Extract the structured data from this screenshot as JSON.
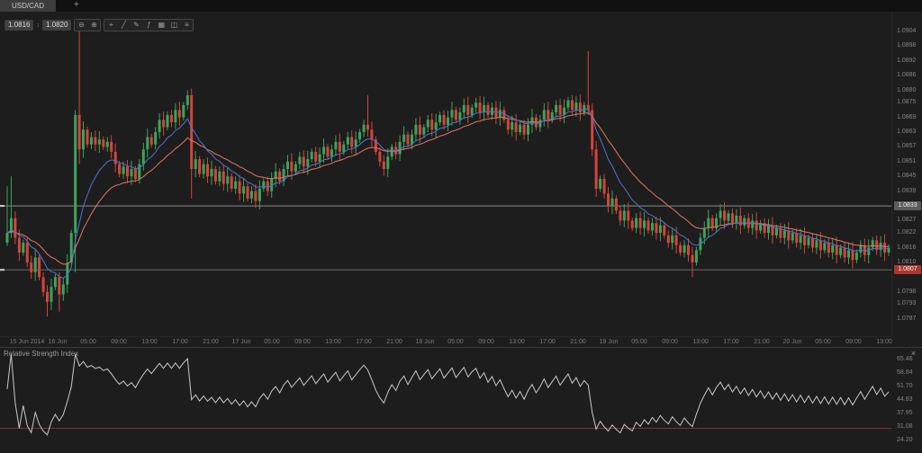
{
  "window": {
    "tabs": [
      {
        "label": "USD/CAD"
      }
    ],
    "add_tab_label": "+"
  },
  "toolbar": {
    "bid": "1.0816",
    "ask": "1.0820",
    "spread_icon_glyph": "↕",
    "icons": [
      {
        "name": "zoom-out-icon",
        "glyph": "⊖"
      },
      {
        "name": "zoom-in-icon",
        "glyph": "⊕"
      },
      {
        "name": "crosshair-icon",
        "glyph": "⌖"
      },
      {
        "name": "trendline-icon",
        "glyph": "╱"
      },
      {
        "name": "draw-icon",
        "glyph": "✎"
      },
      {
        "name": "indicators-icon",
        "glyph": "ƒ"
      },
      {
        "name": "grid-icon",
        "glyph": "▦"
      },
      {
        "name": "layout-icon",
        "glyph": "◫"
      },
      {
        "name": "menu-icon",
        "glyph": "≡"
      }
    ]
  },
  "price_axis": {
    "ticks": [
      "1.0904",
      "1.0898",
      "1.0892",
      "1.0886",
      "1.0880",
      "1.0875",
      "1.0869",
      "1.0863",
      "1.0857",
      "1.0851",
      "1.0845",
      "1.0839",
      "1.0827",
      "1.0822",
      "1.0816",
      "1.0810",
      "1.0798",
      "1.0793",
      "1.0787"
    ],
    "badges": [
      {
        "label": "1.0833",
        "value": 1.0833,
        "type": "gray"
      },
      {
        "label": "1.0807",
        "value": 1.0807,
        "type": "red"
      }
    ]
  },
  "time_axis": {
    "labels": [
      "15 Jun 2014",
      "16 Jun",
      "05:00",
      "09:00",
      "13:00",
      "17:00",
      "21:00",
      "17 Jun",
      "05:00",
      "09:00",
      "13:00",
      "17:00",
      "21:00",
      "18 Jun",
      "05:00",
      "09:00",
      "13:00",
      "17:00",
      "21:00",
      "19 Jun",
      "05:00",
      "09:00",
      "13:00",
      "17:00",
      "21:00",
      "20 Jun",
      "05:00",
      "09:00",
      "13:00"
    ]
  },
  "rsi_panel": {
    "title": "Relative Strength Index",
    "close_label": "×",
    "ticks": [
      "65.46",
      "58.84",
      "51.70",
      "44.83",
      "37.95",
      "31.08",
      "24.20"
    ]
  },
  "chart_data": {
    "type": "candlestick",
    "symbol": "USD/CAD",
    "price_min": 1.078,
    "price_max": 1.0912,
    "first_open": 1.0818,
    "closes": [
      1.0822,
      1.0828,
      1.082,
      1.0814,
      1.0818,
      1.081,
      1.0806,
      1.0812,
      1.0804,
      1.0798,
      1.0794,
      1.08,
      1.0804,
      1.0797,
      1.0801,
      1.081,
      1.0822,
      1.087,
      1.0856,
      1.0864,
      1.0858,
      1.0861,
      1.0858,
      1.086,
      1.0857,
      1.0859,
      1.0855,
      1.085,
      1.0846,
      1.0849,
      1.0845,
      1.0848,
      1.0844,
      1.085,
      1.0856,
      1.0861,
      1.0858,
      1.0863,
      1.0868,
      1.0865,
      1.087,
      1.0867,
      1.0872,
      1.0869,
      1.0874,
      1.0878,
      1.0848,
      1.0852,
      1.0846,
      1.085,
      1.0845,
      1.0848,
      1.0843,
      1.0847,
      1.0842,
      1.0845,
      1.084,
      1.0843,
      1.0838,
      1.0841,
      1.0836,
      1.0839,
      1.0835,
      1.084,
      1.0843,
      1.0839,
      1.0844,
      1.0847,
      1.0843,
      1.0848,
      1.0851,
      1.0847,
      1.085,
      1.0853,
      1.0849,
      1.0852,
      1.0855,
      1.0851,
      1.0854,
      1.0857,
      1.0853,
      1.0856,
      1.0859,
      1.0855,
      1.0858,
      1.0861,
      1.0857,
      1.086,
      1.0863,
      1.0866,
      1.0864,
      1.086,
      1.0855,
      1.0851,
      1.0848,
      1.0853,
      1.0857,
      1.0854,
      1.0859,
      1.0862,
      1.0858,
      1.0862,
      1.0866,
      1.0862,
      1.0865,
      1.0868,
      1.0864,
      1.0867,
      1.087,
      1.0866,
      1.0869,
      1.0872,
      1.0868,
      1.0871,
      1.0874,
      1.087,
      1.0873,
      1.0875,
      1.0871,
      1.0874,
      1.087,
      1.0873,
      1.0869,
      1.0872,
      1.0868,
      1.0864,
      1.0867,
      1.0863,
      1.0866,
      1.0862,
      1.0866,
      1.0869,
      1.0865,
      1.0868,
      1.0872,
      1.0868,
      1.0871,
      1.0874,
      1.087,
      1.0873,
      1.0876,
      1.0872,
      1.0875,
      1.0871,
      1.0874,
      1.0872,
      1.0856,
      1.084,
      1.0844,
      1.0838,
      1.0833,
      1.0836,
      1.0831,
      1.0827,
      1.0831,
      1.0827,
      1.0824,
      1.0828,
      1.0824,
      1.0827,
      1.0823,
      1.0826,
      1.0822,
      1.0825,
      1.0821,
      1.0818,
      1.0821,
      1.0817,
      1.0814,
      1.0817,
      1.0813,
      1.081,
      1.0815,
      1.082,
      1.0824,
      1.0828,
      1.0824,
      1.0828,
      1.0831,
      1.0827,
      1.083,
      1.0826,
      1.0829,
      1.0825,
      1.0828,
      1.0824,
      1.0827,
      1.0823,
      1.0826,
      1.0822,
      1.0825,
      1.0821,
      1.0824,
      1.082,
      1.0823,
      1.0819,
      1.0822,
      1.0818,
      1.0821,
      1.0817,
      1.082,
      1.0816,
      1.0819,
      1.0815,
      1.0818,
      1.0814,
      1.0817,
      1.0813,
      1.0816,
      1.0812,
      1.0815,
      1.0811,
      1.0814,
      1.0817,
      1.0813,
      1.0816,
      1.0819,
      1.0815,
      1.0818,
      1.0814,
      1.0816
    ],
    "wick_overrides": {
      "0": {
        "h": 1.0841
      },
      "1": {
        "h": 1.0845
      },
      "10": {
        "l": 1.0788
      },
      "13": {
        "l": 1.079
      },
      "17": {
        "l": 1.0806
      },
      "18": {
        "h": 1.0904,
        "l": 1.085
      },
      "46": {
        "l": 1.0836
      },
      "90": {
        "h": 1.0878
      },
      "145": {
        "h": 1.0896
      },
      "171": {
        "l": 1.0804
      }
    },
    "hlines": [
      {
        "value": 1.0833,
        "color": "#8a8a8a"
      },
      {
        "value": 1.0807,
        "color": "#6a6a6a"
      }
    ],
    "ema_fast_period": 10,
    "ema_slow_period": 21,
    "rsi_period": 14,
    "rsi_oversold": 30,
    "colors": {
      "up": "#3da35a",
      "down": "#d4453a",
      "ema_fast": "#4f74cf",
      "ema_slow": "#e07861",
      "rsi_line": "#c9c9c9",
      "oversold": "#7d342c",
      "marker": "#cfcfcf"
    }
  }
}
